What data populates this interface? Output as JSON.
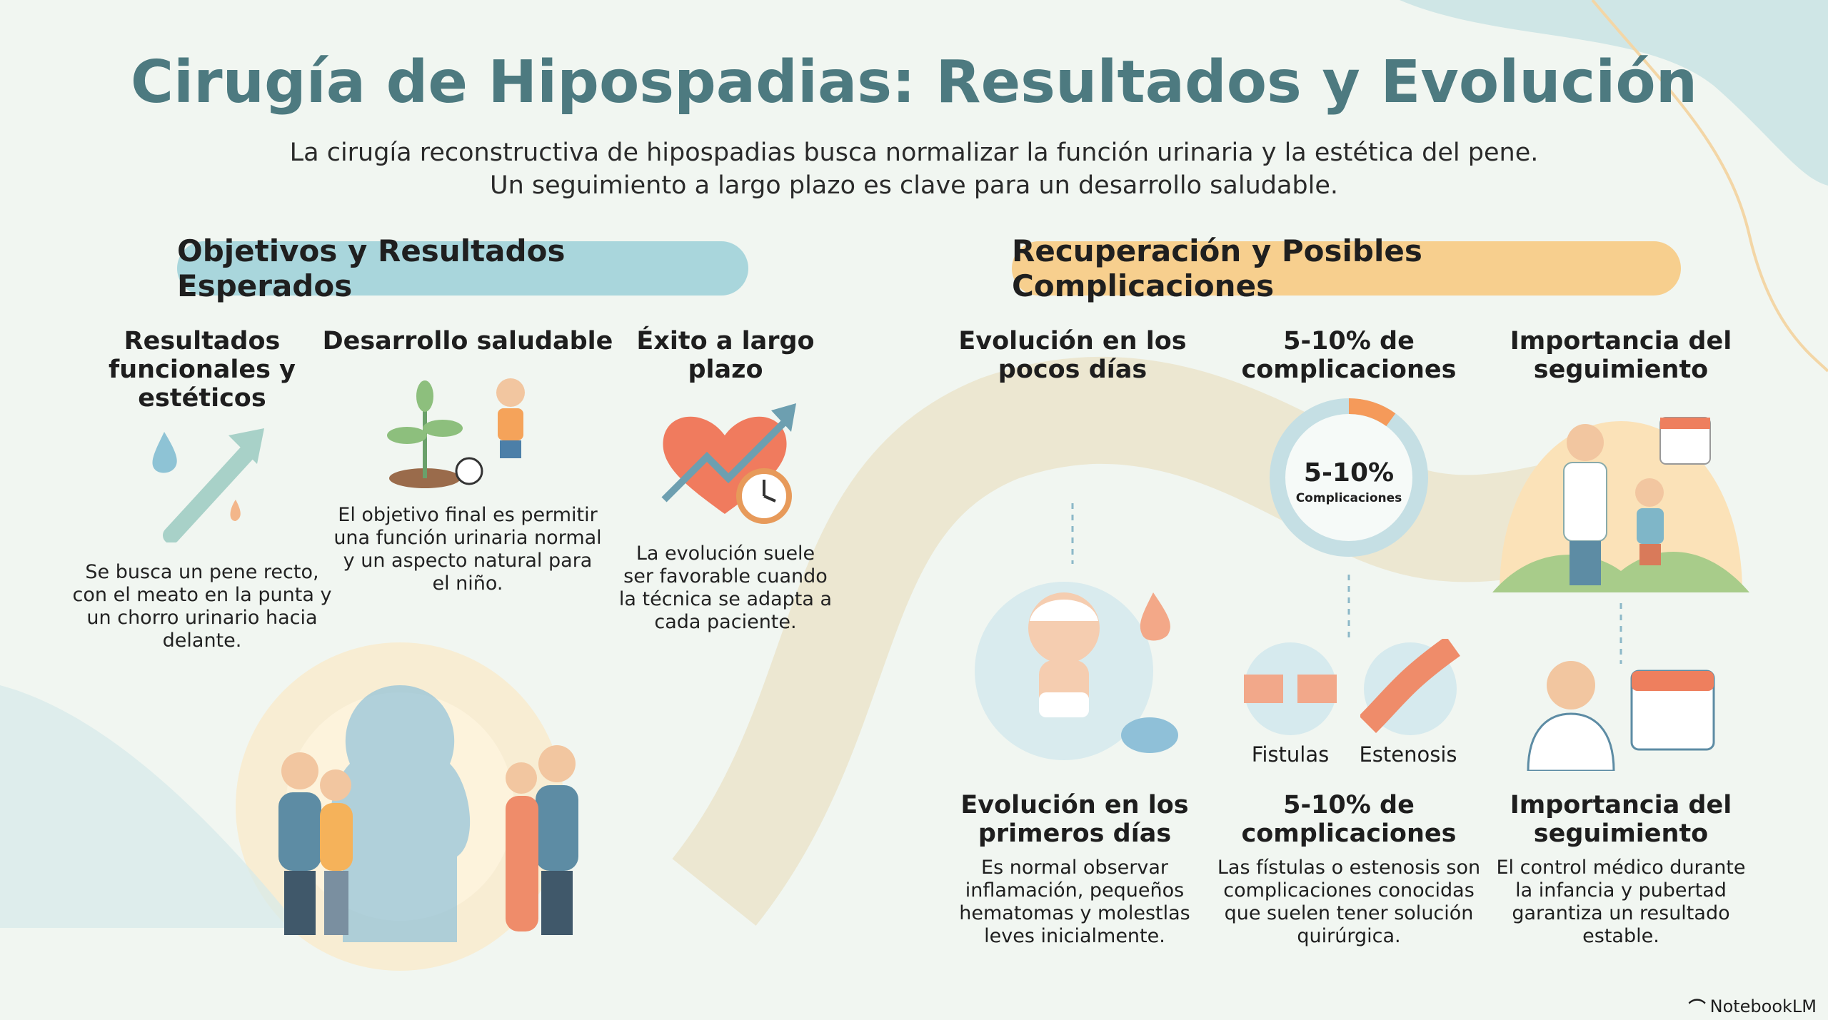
{
  "header": {
    "title": "Cirugía de Hipospadias: Resultados y Evolución",
    "subtitle_line1": "La cirugía reconstructiva de hipospadias busca normalizar la función urinaria y la estética del pene.",
    "subtitle_line2": "Un seguimiento a largo plazo es clave para un desarrollo saludable."
  },
  "sections": {
    "left_pill": "Objetivos y Resultados Esperados",
    "right_pill": "Recuperación y Posibles Complicaciones"
  },
  "left_columns": [
    {
      "title": "Resultados funcionales y estéticos",
      "text": "Se busca un pene recto, con el meato en la punta y un chorro urinario hacia delante.",
      "icon": "water-drop-arrow-icon"
    },
    {
      "title": "Desarrollo saludable",
      "text": "El objetivo final es permitir una función urinaria normal y un aspecto natural para el niño.",
      "icon": "plant-child-icon"
    },
    {
      "title": "Éxito a largo plazo",
      "text": "La evolución suele ser favorable cuando la técnica se adapta a cada paciente.",
      "icon": "heart-chart-clock-icon"
    }
  ],
  "right_columns": [
    {
      "title": "Evolución en los pocos días",
      "low_title": "Evolución en los primeros días",
      "text": "Es normal observar inflamación, pequeños hematomas y molestlas leves inicialmente."
    },
    {
      "title": "5-10% de complicaciones",
      "low_title": "5-10% de complicaciones",
      "text": "Las fístulas o estenosis son complicaciones conocidas que suelen tener solución quirúrgica."
    },
    {
      "title": "Importancia del seguimiento",
      "low_title": "Importancia del seguimiento",
      "text": "El control médico durante la infancia y pubertad garantiza un resultado estable."
    }
  ],
  "donut": {
    "value_label": "5-10%",
    "caption": "Complicaciones",
    "fraction": 0.1
  },
  "complication_labels": [
    "Fistulas",
    "Estenosis"
  ],
  "brand": "NotebookLM",
  "colors": {
    "title": "#4d7a80",
    "left_pill": "#a9d6dc",
    "right_pill": "#f7cf8e",
    "accent_orange": "#f59a5a",
    "donut_ring": "#c5dfe4"
  }
}
